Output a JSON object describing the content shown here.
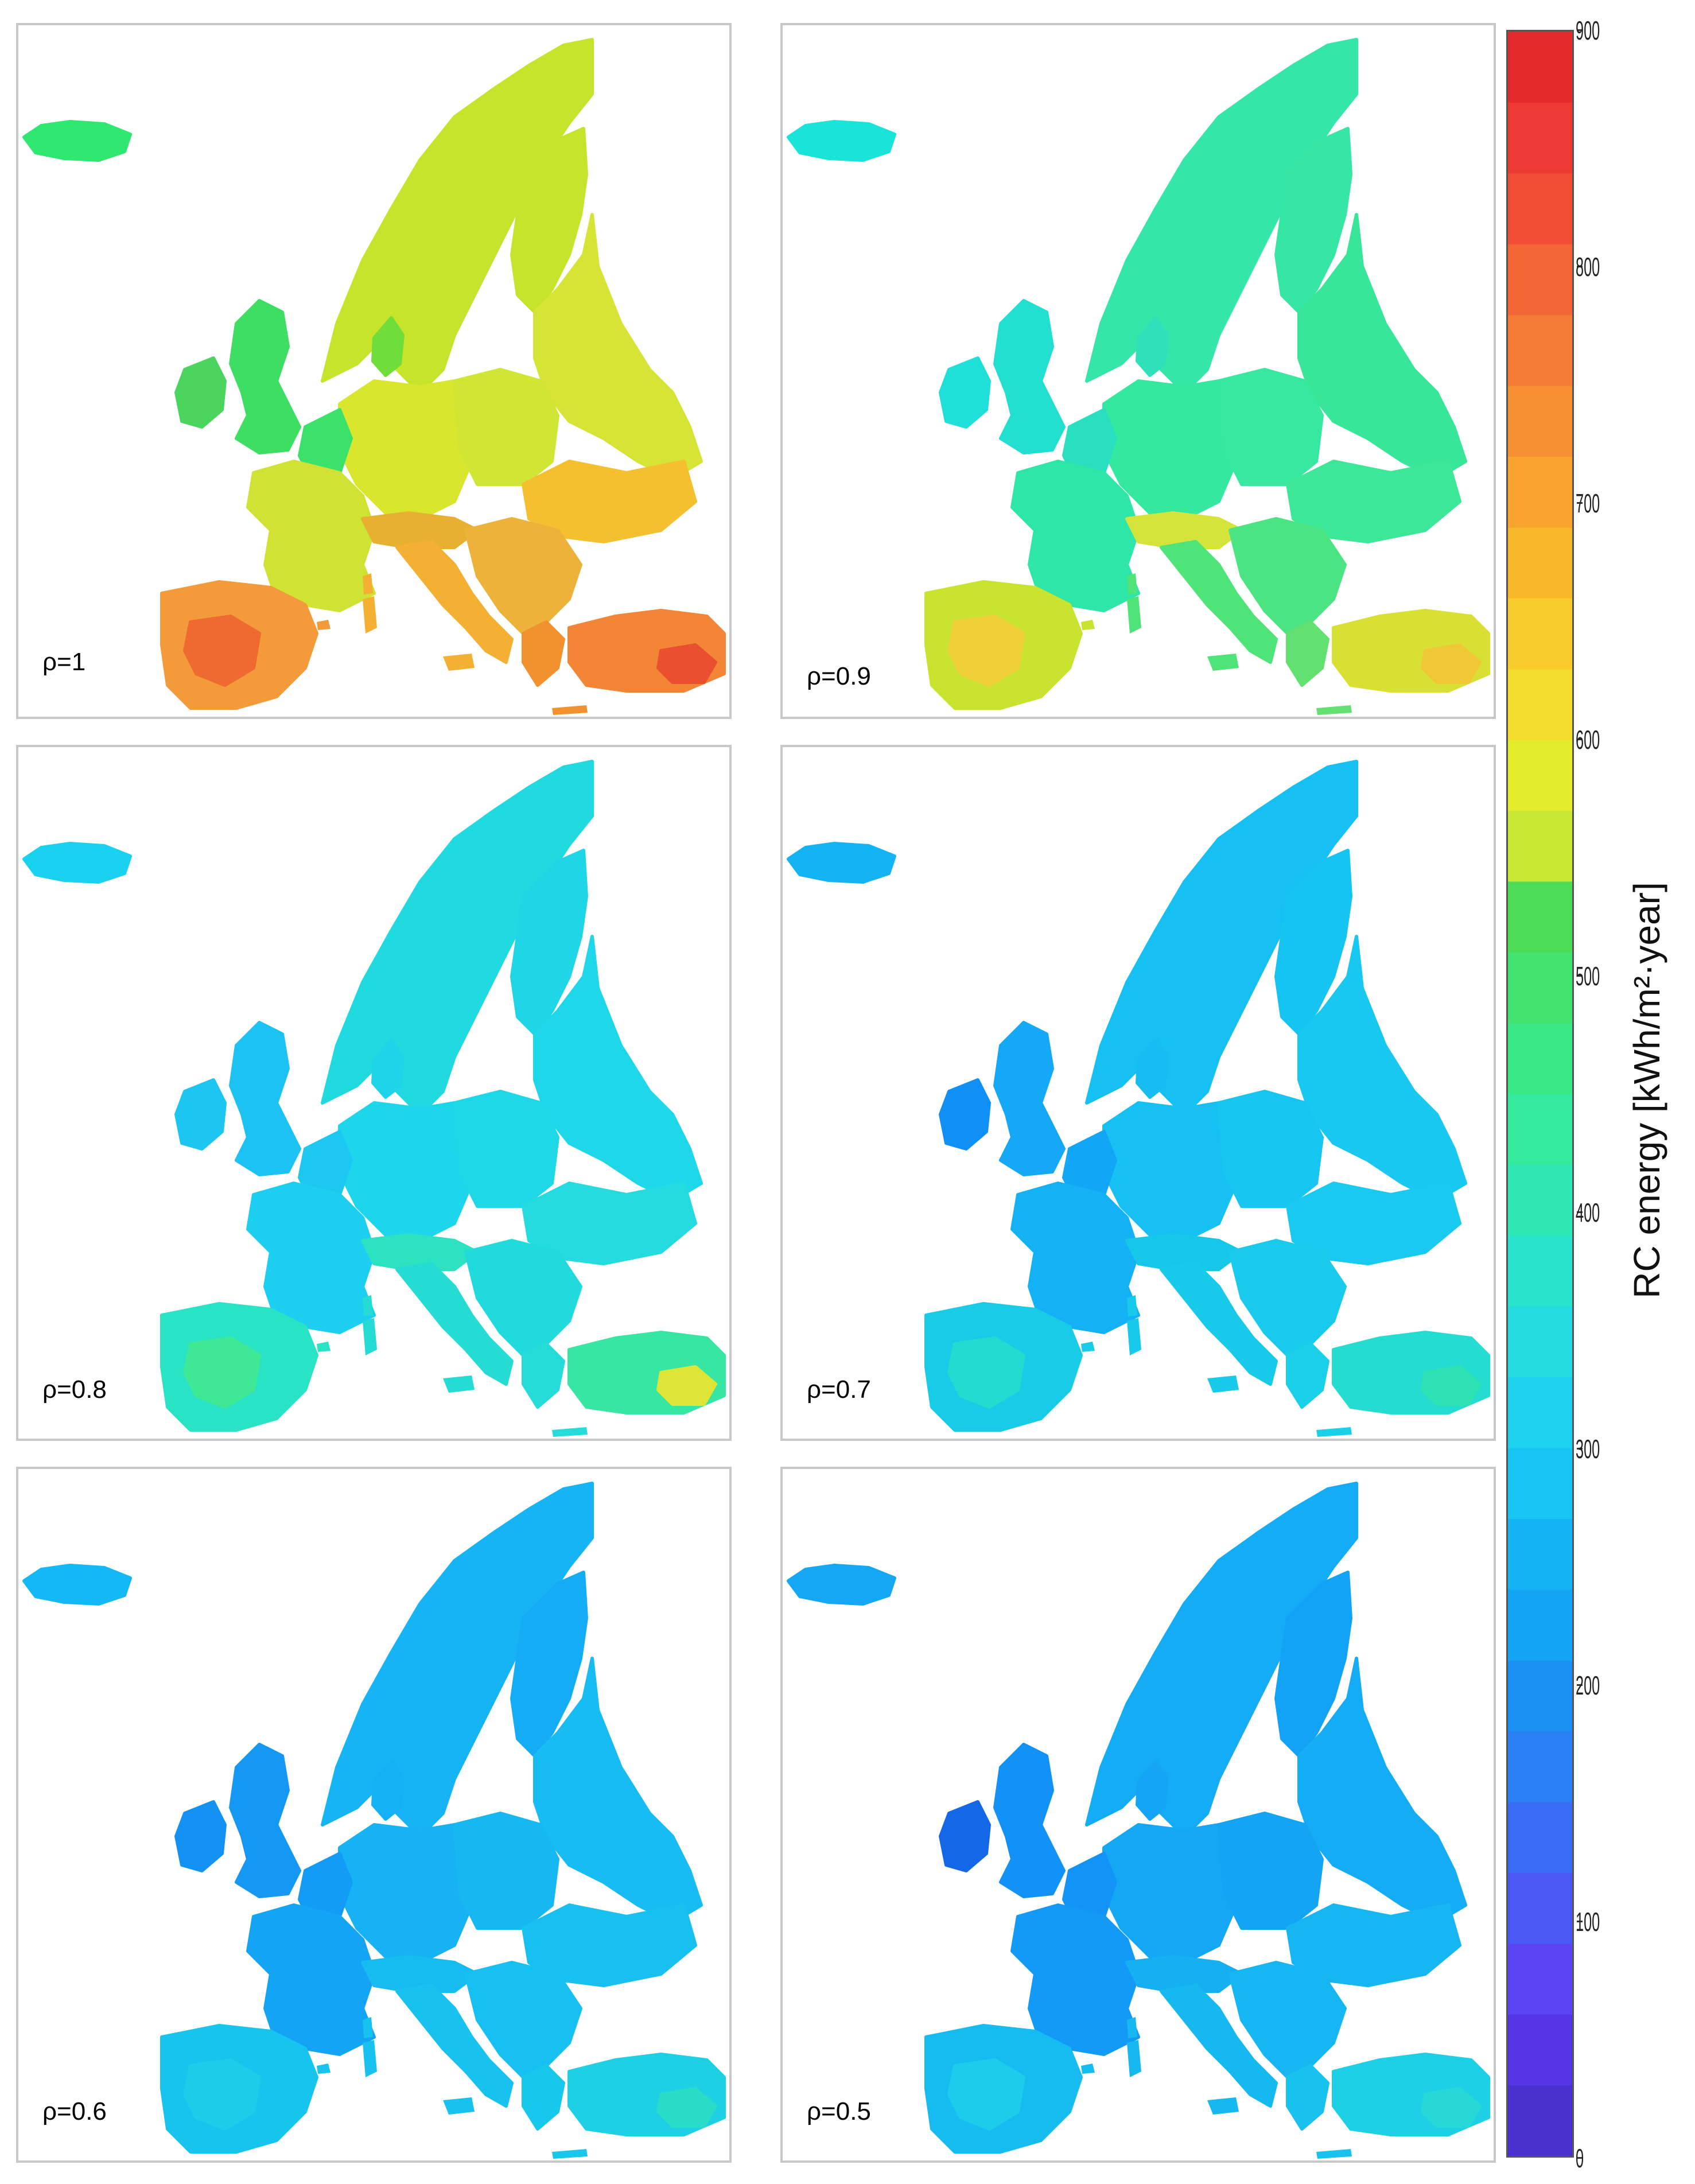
{
  "panels": [
    {
      "label": "ρ=1",
      "base": "#c8e02a",
      "regions": {
        "iceland": "#2ee870",
        "scandinavia": "#c6e42c",
        "finland": "#c6e42c",
        "gb": "#3dde62",
        "ireland": "#4cd55e",
        "denmark": "#6fdd3a",
        "benelux": "#3ae26a",
        "france": "#d0e234",
        "germany": "#d8e62e",
        "poland": "#d0e534",
        "russia": "#d6e436",
        "ukraine": "#f4c030",
        "alps": "#e8b030",
        "iberia": "#f39a3a",
        "iberia_core": "#ee6a30",
        "italy": "#f3b032",
        "balkans": "#ecb23a",
        "greece": "#f2922e",
        "turkey": "#f28636",
        "turkey_hot": "#ea5030"
      }
    },
    {
      "label": "ρ=0.9",
      "base": "#2ee8a0",
      "regions": {
        "iceland": "#18e4d8",
        "scandinavia": "#34e6a8",
        "finland": "#36e6a4",
        "gb": "#22e0d0",
        "ireland": "#1ee0d8",
        "denmark": "#30e0b8",
        "benelux": "#28e0c0",
        "france": "#2ee6a8",
        "germany": "#34e8a0",
        "poland": "#36e8a0",
        "russia": "#38e69a",
        "ukraine": "#3ce898",
        "alps": "#d4e43a",
        "iberia": "#c8e42e",
        "iberia_core": "#f0d038",
        "italy": "#4ee478",
        "balkans": "#4ae482",
        "greece": "#62e070",
        "turkey": "#d8e034",
        "turkey_hot": "#f0c836"
      }
    },
    {
      "label": "ρ=0.8",
      "base": "#1ad6ec",
      "regions": {
        "iceland": "#18d2f0",
        "scandinavia": "#20dae0",
        "finland": "#1ed6e6",
        "gb": "#1cc2f2",
        "ireland": "#1cc6f0",
        "denmark": "#1ed4e8",
        "benelux": "#1cc8f0",
        "france": "#1ccff0",
        "germany": "#1ed6ec",
        "poland": "#1ed8e8",
        "russia": "#1ed8ea",
        "ukraine": "#24dce0",
        "alps": "#2ce2c0",
        "iberia": "#28e4c4",
        "iberia_core": "#3ee894",
        "italy": "#24dcd4",
        "balkans": "#20dadc",
        "greece": "#26dcd8",
        "turkey": "#38e6a4",
        "turkey_hot": "#dde636"
      }
    },
    {
      "label": "ρ=0.7",
      "base": "#16c4f0",
      "regions": {
        "iceland": "#14b4f4",
        "scandinavia": "#16c0f2",
        "finland": "#16c4f2",
        "gb": "#14a8f6",
        "ireland": "#1090f4",
        "denmark": "#16bcf2",
        "benelux": "#12a6f6",
        "france": "#14b2f4",
        "germany": "#16c0f2",
        "poland": "#16c6f0",
        "russia": "#18c8f0",
        "ukraine": "#18caf0",
        "alps": "#16c8e8",
        "iberia": "#18cce8",
        "iberia_core": "#22dcd0",
        "italy": "#18caea",
        "balkans": "#18caec",
        "greece": "#1ad0e8",
        "turkey": "#24dcd0",
        "turkey_hot": "#2ee2b4"
      }
    },
    {
      "label": "ρ=0.6",
      "base": "#16b8f2",
      "regions": {
        "iceland": "#14b8f4",
        "scandinavia": "#16b4f4",
        "finland": "#14acf4",
        "gb": "#1498f4",
        "ireland": "#1492f4",
        "denmark": "#14b2f4",
        "benelux": "#129cf6",
        "france": "#14a4f4",
        "germany": "#16b2f4",
        "poland": "#16b8f2",
        "russia": "#16bcf2",
        "ukraine": "#18c0f0",
        "alps": "#16bcf0",
        "iberia": "#16c4ee",
        "iberia_core": "#1ccce8",
        "italy": "#18c2ee",
        "balkans": "#16c0f0",
        "greece": "#18c8ec",
        "turkey": "#1ed0e4",
        "turkey_hot": "#28dcc8"
      }
    },
    {
      "label": "ρ=0.5",
      "base": "#14acf4",
      "regions": {
        "iceland": "#14a8f4",
        "scandinavia": "#14acf4",
        "finland": "#12a2f6",
        "gb": "#1292f6",
        "ireland": "#1468e8",
        "denmark": "#14a6f4",
        "benelux": "#1294f6",
        "france": "#129af6",
        "germany": "#14a8f4",
        "poland": "#14a4f4",
        "russia": "#14acf4",
        "ukraine": "#16b6f2",
        "alps": "#14b0f2",
        "iberia": "#16bcf0",
        "iberia_core": "#1cccea",
        "italy": "#16b8f0",
        "balkans": "#16b6f2",
        "greece": "#18c2ee",
        "turkey": "#1ed0e6",
        "turkey_hot": "#26d8d6"
      }
    }
  ],
  "colorbar": {
    "title": "RC energy [kWh/m²·year]",
    "min": 0,
    "max": 900,
    "ticks": [
      "0",
      "100",
      "200",
      "300",
      "400",
      "500",
      "600",
      "700",
      "800",
      "900"
    ],
    "bands": [
      "#4a30cc",
      "#5436e4",
      "#5a44f4",
      "#4a58f4",
      "#3a6cf4",
      "#2a80f4",
      "#1a92f4",
      "#14a4f4",
      "#14b4f4",
      "#18c4f2",
      "#1cd2ee",
      "#22dce0",
      "#28e4cc",
      "#2ee8b4",
      "#34ea9c",
      "#3ae886",
      "#44e26e",
      "#4cdc58",
      "#c8e834",
      "#e4ec2e",
      "#f4dc2c",
      "#f8cc2c",
      "#f8b82c",
      "#f8a42e",
      "#f69032",
      "#f47c34",
      "#f26636",
      "#f24e36",
      "#ee3a34",
      "#e42a2a"
    ]
  }
}
